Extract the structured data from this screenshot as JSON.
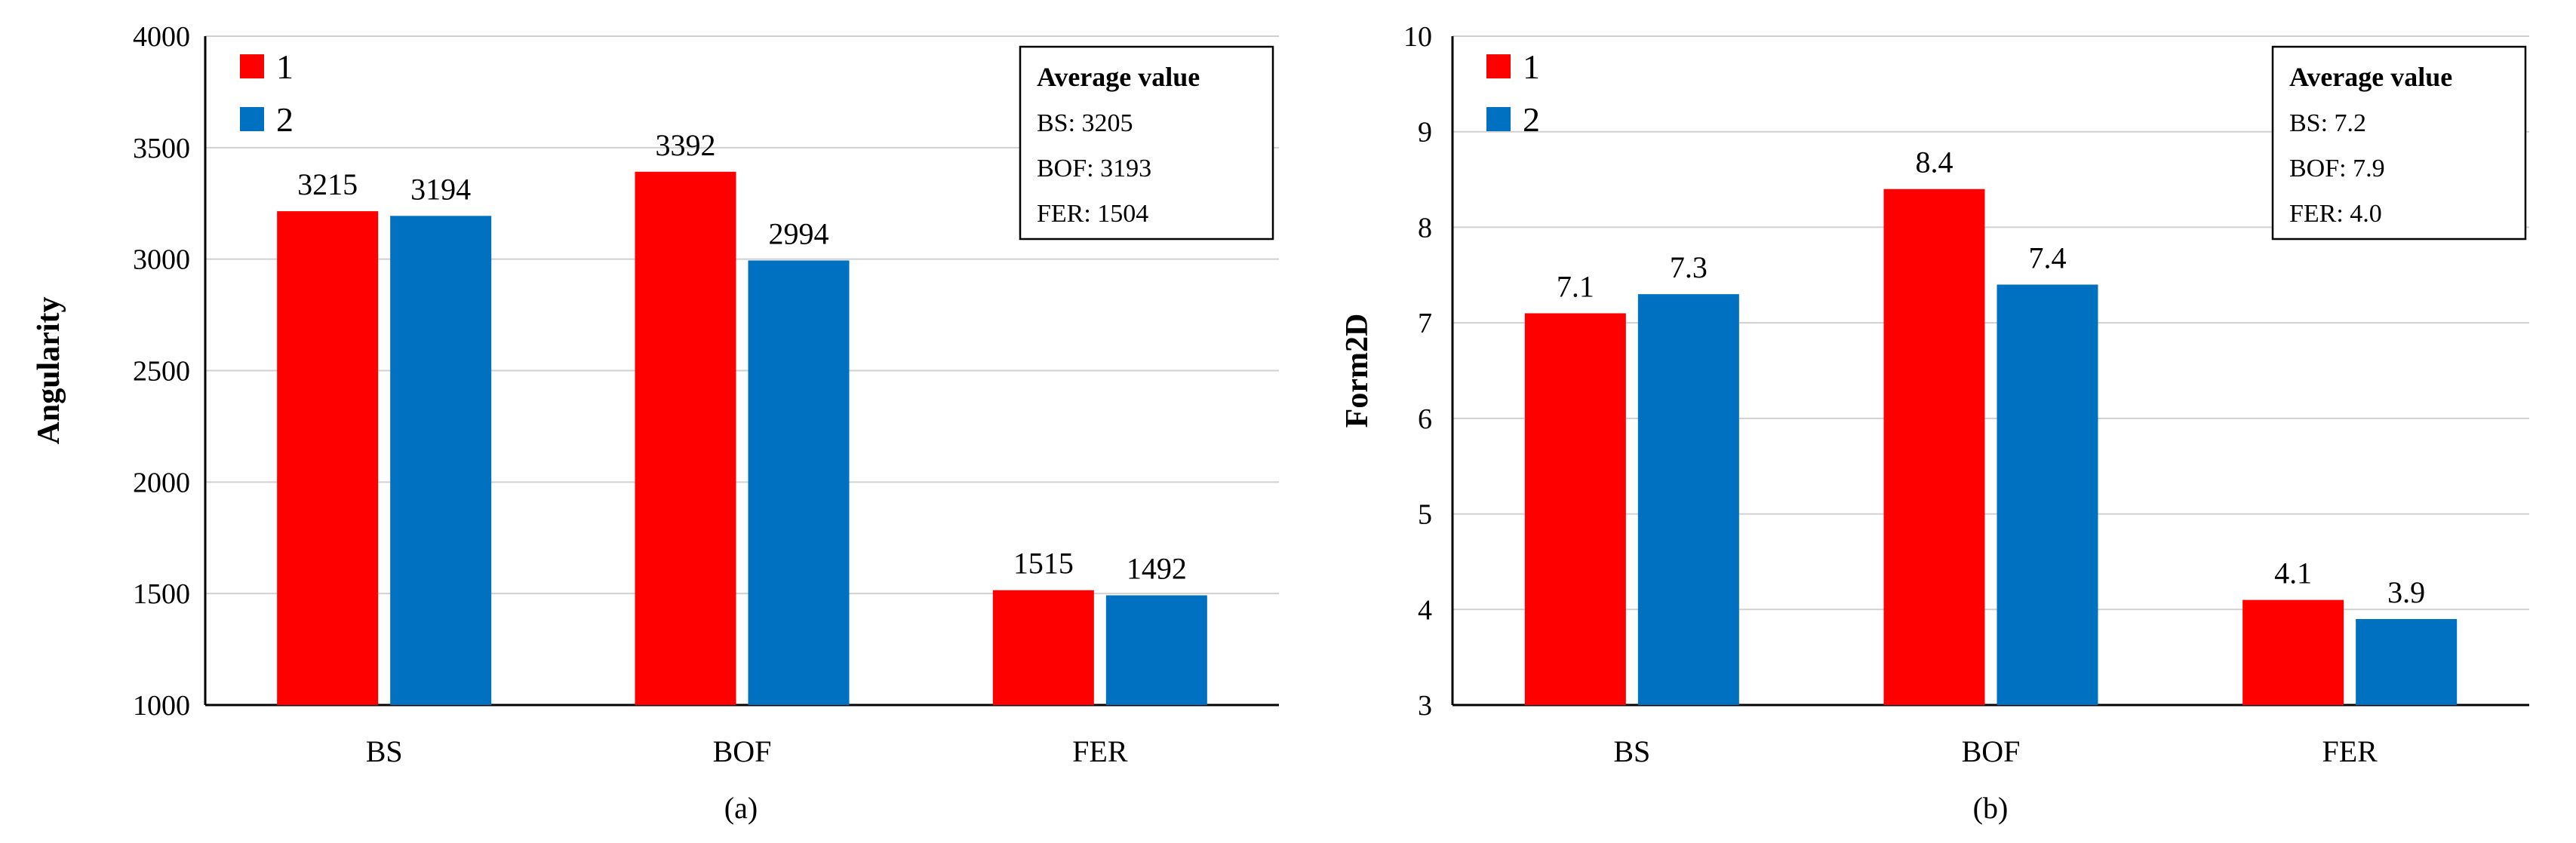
{
  "chart_data": [
    {
      "type": "bar",
      "caption": "(a)",
      "ylabel": "Angularity",
      "xlabel": "",
      "ylim": [
        1000,
        4000
      ],
      "ytick_step": 500,
      "yticks": [
        "1000",
        "1500",
        "2000",
        "2500",
        "3000",
        "3500",
        "4000"
      ],
      "categories": [
        "BS",
        "BOF",
        "FER"
      ],
      "series": [
        {
          "name": "1",
          "color": "#ff0000",
          "values": [
            3215,
            3392,
            1515
          ],
          "labels": [
            "3215",
            "3392",
            "1515"
          ]
        },
        {
          "name": "2",
          "color": "#0070c0",
          "values": [
            3194,
            2994,
            1492
          ],
          "labels": [
            "3194",
            "2994",
            "1492"
          ]
        }
      ],
      "legend_position": "top-left",
      "grid": true,
      "annotation": {
        "title": "Average value",
        "lines": [
          "BS: 3205",
          "BOF: 3193",
          "FER: 1504"
        ]
      }
    },
    {
      "type": "bar",
      "caption": "(b)",
      "ylabel": "Form2D",
      "xlabel": "",
      "ylim": [
        3,
        10
      ],
      "ytick_step": 1,
      "yticks": [
        "3",
        "4",
        "5",
        "6",
        "7",
        "8",
        "9",
        "10"
      ],
      "categories": [
        "BS",
        "BOF",
        "FER"
      ],
      "series": [
        {
          "name": "1",
          "color": "#ff0000",
          "values": [
            7.1,
            8.4,
            4.1
          ],
          "labels": [
            "7.1",
            "8.4",
            "4.1"
          ]
        },
        {
          "name": "2",
          "color": "#0070c0",
          "values": [
            7.3,
            7.4,
            3.9
          ],
          "labels": [
            "7.3",
            "7.4",
            "3.9"
          ]
        }
      ],
      "legend_position": "top-left",
      "grid": true,
      "annotation": {
        "title": "Average value",
        "lines": [
          "BS: 7.2",
          "BOF: 7.9",
          "FER: 4.0"
        ]
      }
    }
  ]
}
